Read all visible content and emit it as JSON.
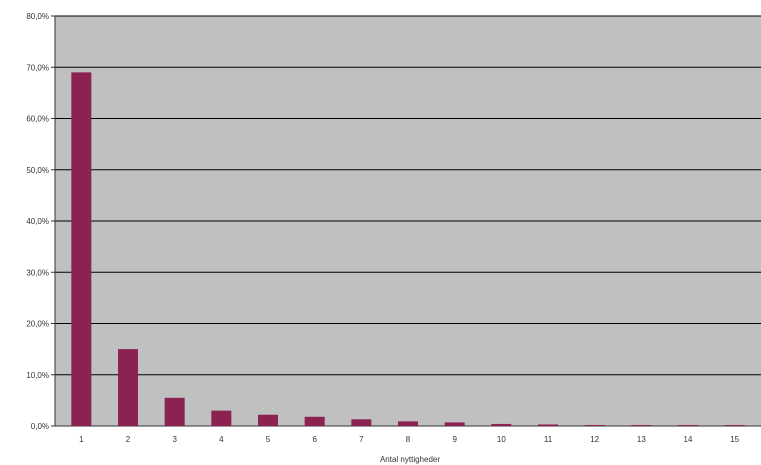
{
  "chart_data": {
    "type": "bar",
    "title": "",
    "xlabel": "Antal nyttigheder",
    "ylabel": "",
    "categories": [
      "1",
      "2",
      "3",
      "4",
      "5",
      "6",
      "7",
      "8",
      "9",
      "10",
      "11",
      "12",
      "13",
      "14",
      "15"
    ],
    "values": [
      69.0,
      15.0,
      5.5,
      3.0,
      2.2,
      1.8,
      1.3,
      0.9,
      0.7,
      0.4,
      0.3,
      0.2,
      0.1,
      0.1,
      0.05
    ],
    "ylim": [
      0,
      80
    ],
    "yticks": [
      "0,0%",
      "10,0%",
      "20,0%",
      "30,0%",
      "40,0%",
      "50,0%",
      "60,0%",
      "70,0%",
      "80,0%"
    ],
    "ytick_values": [
      0,
      10,
      20,
      30,
      40,
      50,
      60,
      70,
      80
    ],
    "grid": true,
    "legend": "none",
    "colors": {
      "bar": "#8b2252",
      "plot_background": "#c0c0c0",
      "gridline": "#000000",
      "page_background": "#ffffff"
    }
  }
}
